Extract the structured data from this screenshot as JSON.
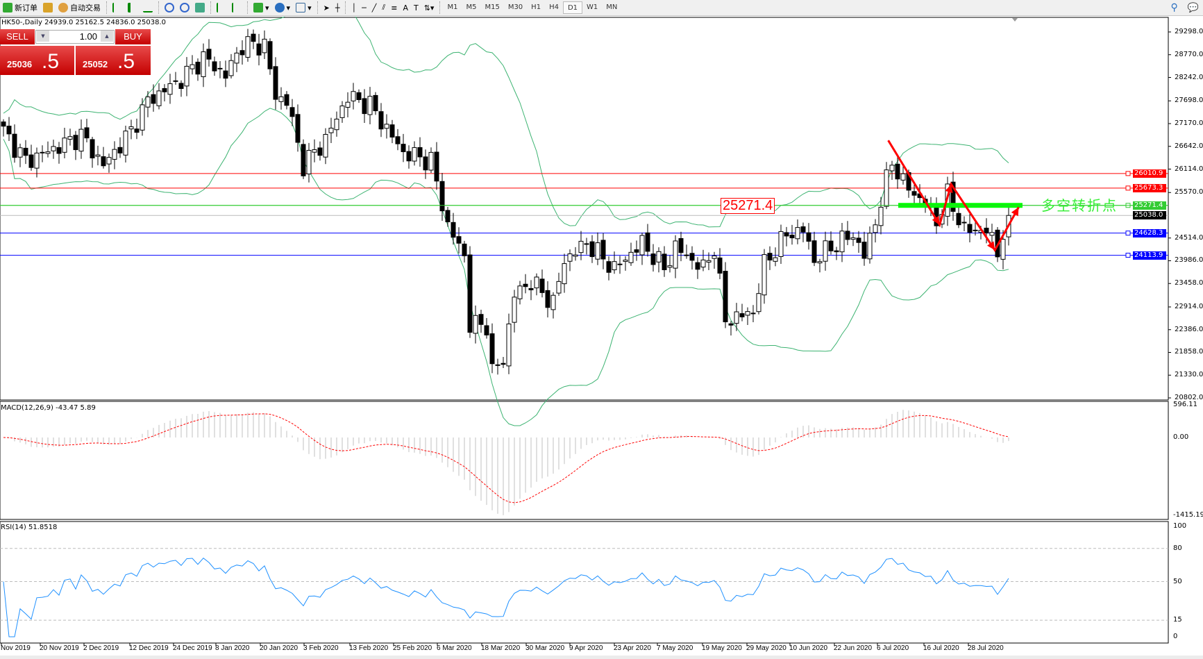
{
  "toolbar": {
    "new_order_label": "新订单",
    "auto_trading_label": "自动交易",
    "timeframes": [
      "M1",
      "M5",
      "M15",
      "M30",
      "H1",
      "H4",
      "D1",
      "W1",
      "MN"
    ],
    "active_timeframe": "D1"
  },
  "chart": {
    "header": "HK50-,Daily  24939.0 25162.5 24836.0 25038.0",
    "annotation_price": "25271.4",
    "annotation_text": "多空转折点"
  },
  "one_click": {
    "sell_label": "SELL",
    "buy_label": "BUY",
    "lot": "1.00",
    "sell_price_main": "25036",
    "sell_price_big": ".5",
    "buy_price_main": "25052",
    "buy_price_big": ".5"
  },
  "price_axis": [
    "29298.0",
    "28770.0",
    "28242.0",
    "27698.0",
    "27170.0",
    "26642.0",
    "26114.0",
    "25570.0",
    "24514.0",
    "23986.0",
    "23458.0",
    "22914.0",
    "22386.0",
    "21858.0",
    "21330.0",
    "20802.0"
  ],
  "levels": [
    {
      "price": "26010.9",
      "color": "#ff0000"
    },
    {
      "price": "25673.3",
      "color": "#ff0000"
    },
    {
      "price": "25271.4",
      "color": "#33cc33"
    },
    {
      "price": "25038.0",
      "color": "#000000"
    },
    {
      "price": "24628.3",
      "color": "#0000ff"
    },
    {
      "price": "24113.9",
      "color": "#0000ff"
    }
  ],
  "macd": {
    "label": "MACD(12,26,9) -43.47 5.89",
    "axis": [
      "596.11",
      "0.00",
      "-1415.19"
    ]
  },
  "rsi": {
    "label": "RSI(14) 51.8518",
    "axis": [
      "100",
      "80",
      "50",
      "15",
      "0"
    ]
  },
  "date_axis": [
    "Nov 2019",
    "20 Nov 2019",
    "2 Dec 2019",
    "12 Dec 2019",
    "24 Dec 2019",
    "8 Jan 2020",
    "20 Jan 2020",
    "3 Feb 2020",
    "13 Feb 2020",
    "25 Feb 2020",
    "6 Mar 2020",
    "18 Mar 2020",
    "30 Mar 2020",
    "9 Apr 2020",
    "23 Apr 2020",
    "7 May 2020",
    "19 May 2020",
    "29 May 2020",
    "10 Jun 2020",
    "22 Jun 2020",
    "6 Jul 2020",
    "16 Jul 2020",
    "28 Jul 2020"
  ],
  "chart_data": {
    "type": "candlestick",
    "symbol": "HK50-",
    "timeframe": "Daily",
    "ylim": [
      20802,
      29298
    ],
    "close_keypoints": [
      [
        0,
        27000
      ],
      [
        4,
        26300
      ],
      [
        11,
        26700
      ],
      [
        14,
        26900
      ],
      [
        18,
        26200
      ],
      [
        23,
        27000
      ],
      [
        26,
        27700
      ],
      [
        32,
        28200
      ],
      [
        36,
        28700
      ],
      [
        40,
        28300
      ],
      [
        43,
        29000
      ],
      [
        47,
        29000
      ],
      [
        49,
        27800
      ],
      [
        51,
        27700
      ],
      [
        54,
        26200
      ],
      [
        58,
        26800
      ],
      [
        62,
        27800
      ],
      [
        66,
        27600
      ],
      [
        72,
        26500
      ],
      [
        77,
        26300
      ],
      [
        80,
        24800
      ],
      [
        83,
        24100
      ],
      [
        84,
        22500
      ],
      [
        87,
        22500
      ],
      [
        88,
        21400
      ],
      [
        90,
        21700
      ],
      [
        92,
        23200
      ],
      [
        95,
        23500
      ],
      [
        99,
        23000
      ],
      [
        101,
        24000
      ],
      [
        105,
        24400
      ],
      [
        110,
        23800
      ],
      [
        115,
        24400
      ],
      [
        119,
        23800
      ],
      [
        121,
        24300
      ],
      [
        126,
        23800
      ],
      [
        128,
        24300
      ],
      [
        130,
        22600
      ],
      [
        135,
        22800
      ],
      [
        137,
        23900
      ],
      [
        141,
        24600
      ],
      [
        144,
        24700
      ],
      [
        146,
        24000
      ],
      [
        149,
        24300
      ],
      [
        153,
        24600
      ],
      [
        155,
        24100
      ],
      [
        157,
        24900
      ],
      [
        160,
        26300
      ],
      [
        162,
        25800
      ],
      [
        166,
        25300
      ],
      [
        168,
        24900
      ],
      [
        170,
        25500
      ],
      [
        173,
        24700
      ],
      [
        177,
        24700
      ],
      [
        179,
        24200
      ],
      [
        181,
        25038
      ]
    ],
    "indicators": [
      "Bollinger Bands(20,2)",
      "MACD(12,26,9)",
      "RSI(14)"
    ],
    "colors": {
      "bands": "#3cb371",
      "signal": "#ff0000",
      "histogram": "#c0c0c0",
      "rsi": "#1e90ff",
      "arrows": "#ff0000",
      "pivot": "#00ff00"
    }
  }
}
